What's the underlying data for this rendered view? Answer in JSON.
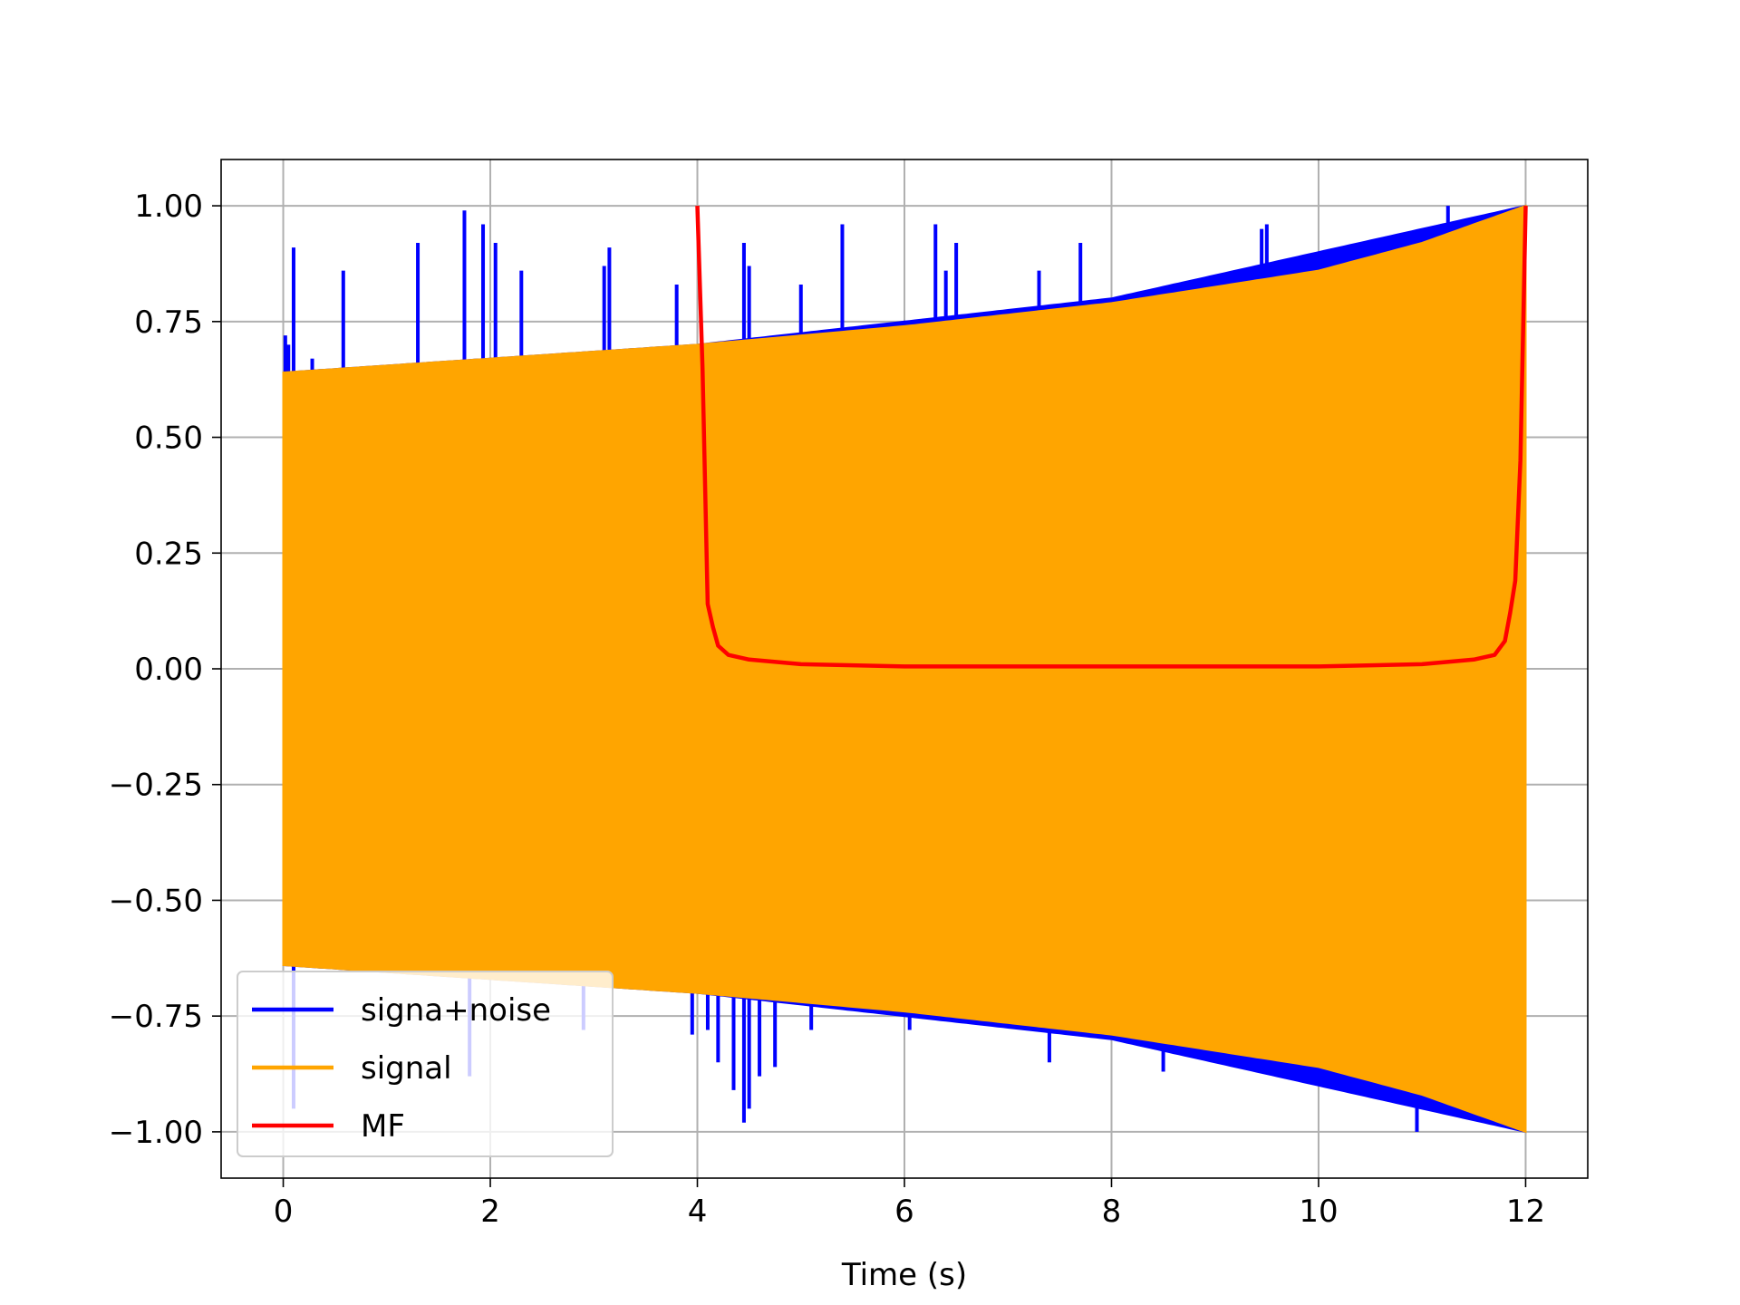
{
  "chart_data": {
    "type": "line",
    "title": "",
    "xlabel": "Time (s)",
    "ylabel": "",
    "xlim": [
      -0.6,
      12.6
    ],
    "ylim": [
      -1.1,
      1.1
    ],
    "x_ticks": [
      0,
      2,
      4,
      6,
      8,
      10,
      12
    ],
    "x_tick_labels": [
      "0",
      "2",
      "4",
      "6",
      "8",
      "10",
      "12"
    ],
    "y_ticks": [
      1.0,
      0.75,
      0.5,
      0.25,
      0.0,
      -0.25,
      -0.5,
      -0.75,
      -1.0
    ],
    "y_tick_labels": [
      "1.00",
      "0.75",
      "0.50",
      "0.25",
      "0.00",
      "−0.25",
      "−0.50",
      "−0.75",
      "−1.00"
    ],
    "grid": true,
    "legend_position": "lower-left",
    "series": [
      {
        "name": "signa+noise",
        "color": "#0000ff",
        "envelope": {
          "x": [
            0,
            4,
            8,
            12
          ],
          "upper": [
            0.64,
            0.7,
            0.8,
            1.0
          ],
          "lower": [
            -0.64,
            -0.7,
            -0.8,
            -1.0
          ]
        },
        "spikes": [
          {
            "x": 0.02,
            "y": 0.72
          },
          {
            "x": 0.05,
            "y": 0.7
          },
          {
            "x": 0.1,
            "y": 0.91
          },
          {
            "x": 0.28,
            "y": 0.67
          },
          {
            "x": 0.58,
            "y": 0.86
          },
          {
            "x": 1.3,
            "y": 0.92
          },
          {
            "x": 1.75,
            "y": 0.99
          },
          {
            "x": 1.93,
            "y": 0.96
          },
          {
            "x": 2.05,
            "y": 0.92
          },
          {
            "x": 2.3,
            "y": 0.86
          },
          {
            "x": 3.1,
            "y": 0.87
          },
          {
            "x": 3.15,
            "y": 0.91
          },
          {
            "x": 3.8,
            "y": 0.83
          },
          {
            "x": 4.45,
            "y": 0.92
          },
          {
            "x": 4.5,
            "y": 0.87
          },
          {
            "x": 5.0,
            "y": 0.83
          },
          {
            "x": 5.4,
            "y": 0.96
          },
          {
            "x": 6.3,
            "y": 0.96
          },
          {
            "x": 6.4,
            "y": 0.86
          },
          {
            "x": 6.5,
            "y": 0.92
          },
          {
            "x": 7.3,
            "y": 0.86
          },
          {
            "x": 7.7,
            "y": 0.92
          },
          {
            "x": 9.45,
            "y": 0.95
          },
          {
            "x": 9.5,
            "y": 0.96
          },
          {
            "x": 11.25,
            "y": 1.0
          },
          {
            "x": 0.1,
            "y": -0.95
          },
          {
            "x": 1.8,
            "y": -0.88
          },
          {
            "x": 2.9,
            "y": -0.78
          },
          {
            "x": 3.95,
            "y": -0.79
          },
          {
            "x": 4.1,
            "y": -0.78
          },
          {
            "x": 4.2,
            "y": -0.85
          },
          {
            "x": 4.35,
            "y": -0.91
          },
          {
            "x": 4.45,
            "y": -0.98
          },
          {
            "x": 4.5,
            "y": -0.95
          },
          {
            "x": 4.6,
            "y": -0.88
          },
          {
            "x": 4.75,
            "y": -0.86
          },
          {
            "x": 5.1,
            "y": -0.78
          },
          {
            "x": 6.05,
            "y": -0.78
          },
          {
            "x": 7.4,
            "y": -0.85
          },
          {
            "x": 8.5,
            "y": -0.87
          },
          {
            "x": 9.5,
            "y": -0.86
          },
          {
            "x": 10.95,
            "y": -1.0
          }
        ]
      },
      {
        "name": "signal",
        "color": "#ffa500",
        "envelope": {
          "x": [
            0,
            2,
            4,
            6,
            8,
            10,
            11,
            12
          ],
          "upper": [
            0.64,
            0.67,
            0.7,
            0.74,
            0.79,
            0.86,
            0.92,
            1.0
          ],
          "lower": [
            -0.64,
            -0.67,
            -0.7,
            -0.74,
            -0.79,
            -0.86,
            -0.92,
            -1.0
          ]
        }
      },
      {
        "name": "MF",
        "color": "#ff0000",
        "x": [
          4.0,
          4.05,
          4.1,
          4.15,
          4.2,
          4.3,
          4.5,
          5.0,
          6.0,
          7.0,
          8.0,
          9.0,
          10.0,
          11.0,
          11.5,
          11.7,
          11.8,
          11.85,
          11.9,
          11.95,
          12.0
        ],
        "y": [
          1.0,
          0.65,
          0.14,
          0.09,
          0.05,
          0.03,
          0.02,
          0.01,
          0.005,
          0.005,
          0.005,
          0.005,
          0.005,
          0.01,
          0.02,
          0.03,
          0.06,
          0.12,
          0.19,
          0.45,
          1.0
        ]
      }
    ]
  }
}
